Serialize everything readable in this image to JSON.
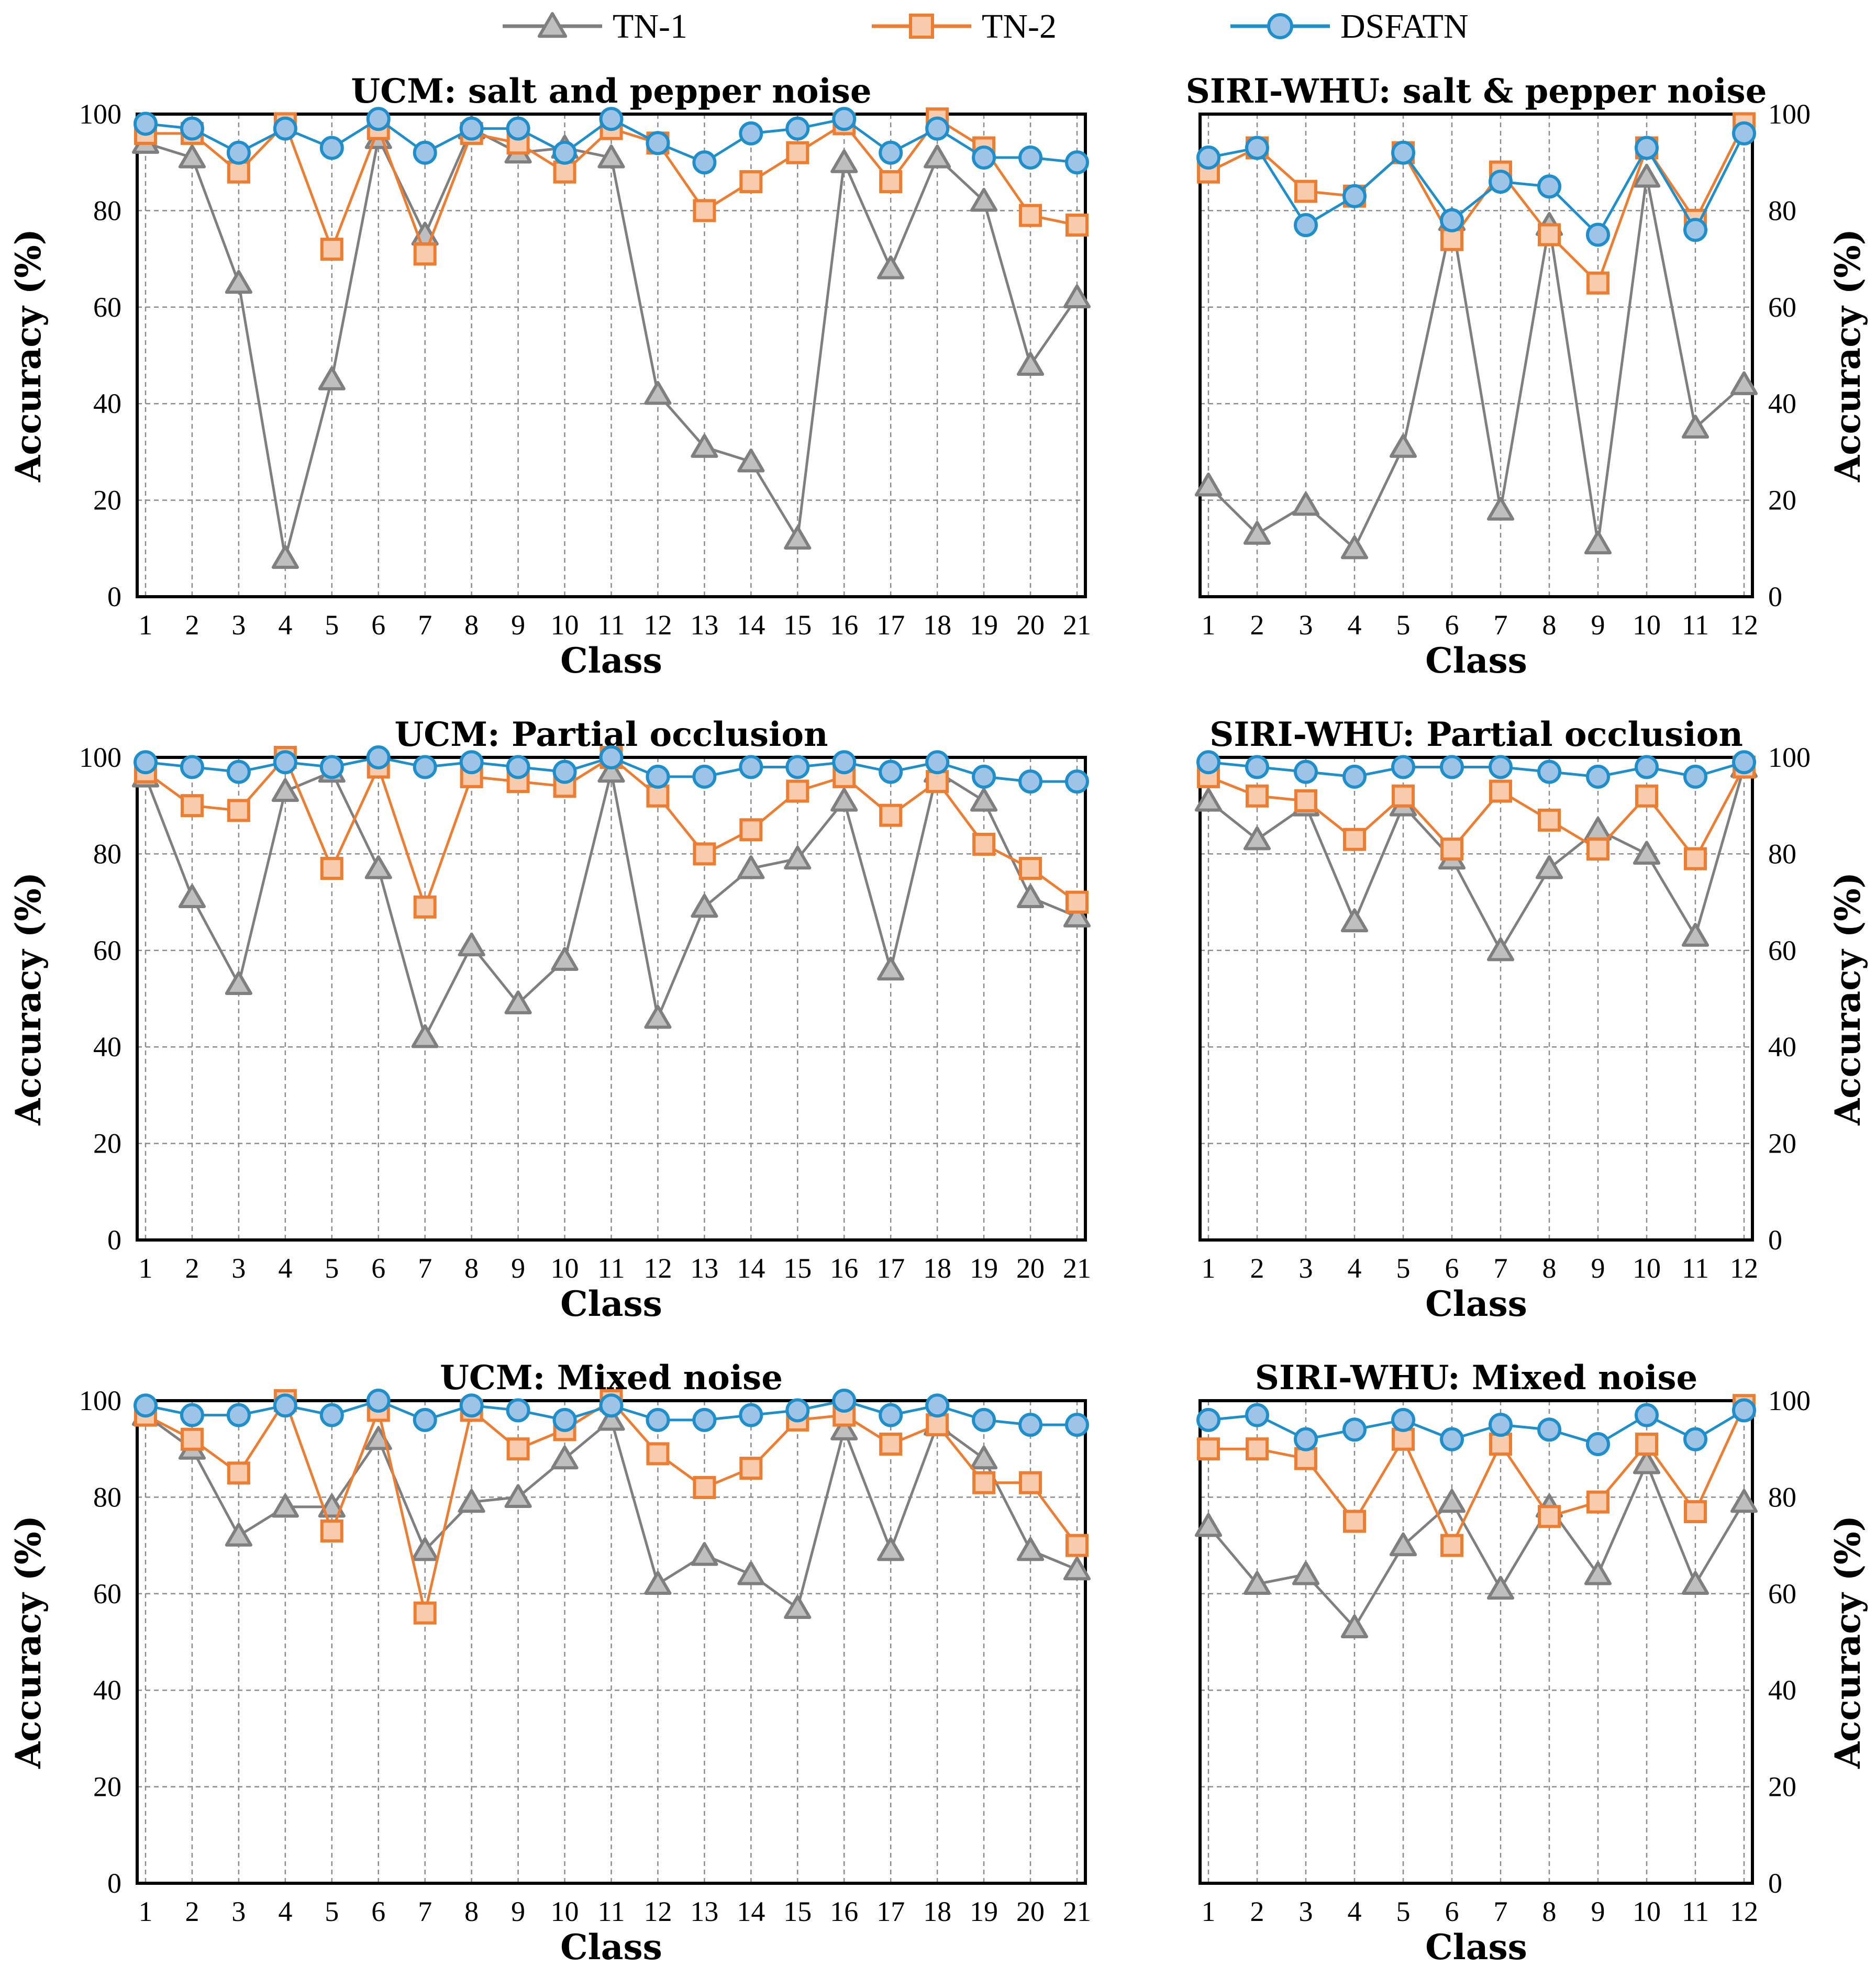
{
  "legend": [
    {
      "name": "TN-1",
      "color": "#7f7f7f",
      "fill": "#bfbfbf",
      "marker": "triangle"
    },
    {
      "name": "TN-2",
      "color": "#ed7d31",
      "fill": "#f8cbad",
      "marker": "square"
    },
    {
      "name": "DSFATN",
      "color": "#1f8fcc",
      "fill": "#9dc3e6",
      "marker": "circle"
    }
  ],
  "chart_data": [
    {
      "type": "line",
      "title": "UCM: salt and pepper noise",
      "xlabel": "Class",
      "ylabel": "Accuracy (%)",
      "ylim": [
        0,
        100
      ],
      "yaxis_side": "left",
      "categories": [
        "1",
        "2",
        "3",
        "4",
        "5",
        "6",
        "7",
        "8",
        "9",
        "10",
        "11",
        "12",
        "13",
        "14",
        "15",
        "16",
        "17",
        "18",
        "19",
        "20",
        "21"
      ],
      "series": [
        {
          "name": "TN-1",
          "values": [
            94,
            91,
            65,
            8,
            45,
            95,
            75,
            97,
            92,
            93,
            91,
            42,
            31,
            28,
            12,
            90,
            68,
            91,
            82,
            48,
            62
          ]
        },
        {
          "name": "TN-2",
          "values": [
            96,
            96,
            88,
            98,
            72,
            97,
            71,
            96,
            94,
            88,
            97,
            94,
            80,
            86,
            92,
            98,
            86,
            99,
            93,
            79,
            77
          ]
        },
        {
          "name": "DSFATN",
          "values": [
            98,
            97,
            92,
            97,
            93,
            99,
            92,
            97,
            97,
            92,
            99,
            94,
            90,
            96,
            97,
            99,
            92,
            97,
            91,
            91,
            90
          ]
        }
      ]
    },
    {
      "type": "line",
      "title": "SIRI-WHU: salt & pepper noise",
      "xlabel": "Class",
      "ylabel": "Accuracy (%)",
      "ylim": [
        0,
        100
      ],
      "yaxis_side": "right",
      "categories": [
        "1",
        "2",
        "3",
        "4",
        "5",
        "6",
        "7",
        "8",
        "9",
        "10",
        "11",
        "12"
      ],
      "series": [
        {
          "name": "TN-1",
          "values": [
            23,
            13,
            19,
            10,
            31,
            78,
            18,
            77,
            11,
            87,
            35,
            44
          ]
        },
        {
          "name": "TN-2",
          "values": [
            88,
            93,
            84,
            83,
            92,
            74,
            88,
            75,
            65,
            93,
            78,
            98
          ]
        },
        {
          "name": "DSFATN",
          "values": [
            91,
            93,
            77,
            83,
            92,
            78,
            86,
            85,
            75,
            93,
            76,
            96
          ]
        }
      ]
    },
    {
      "type": "line",
      "title": "UCM: Partial occlusion",
      "xlabel": "Class",
      "ylabel": "Accuracy (%)",
      "ylim": [
        0,
        100
      ],
      "yaxis_side": "left",
      "categories": [
        "1",
        "2",
        "3",
        "4",
        "5",
        "6",
        "7",
        "8",
        "9",
        "10",
        "11",
        "12",
        "13",
        "14",
        "15",
        "16",
        "17",
        "18",
        "19",
        "20",
        "21"
      ],
      "series": [
        {
          "name": "TN-1",
          "values": [
            96,
            71,
            53,
            93,
            97,
            77,
            42,
            61,
            49,
            58,
            97,
            46,
            69,
            77,
            79,
            91,
            56,
            97,
            91,
            71,
            67
          ]
        },
        {
          "name": "TN-2",
          "values": [
            97,
            90,
            89,
            100,
            77,
            98,
            69,
            96,
            95,
            94,
            100,
            92,
            80,
            85,
            93,
            96,
            88,
            95,
            82,
            77,
            70
          ]
        },
        {
          "name": "DSFATN",
          "values": [
            99,
            98,
            97,
            99,
            98,
            100,
            98,
            99,
            98,
            97,
            100,
            96,
            96,
            98,
            98,
            99,
            97,
            99,
            96,
            95,
            95
          ]
        }
      ]
    },
    {
      "type": "line",
      "title": "SIRI-WHU: Partial occlusion",
      "xlabel": "Class",
      "ylabel": "Accuracy (%)",
      "ylim": [
        0,
        100
      ],
      "yaxis_side": "right",
      "categories": [
        "1",
        "2",
        "3",
        "4",
        "5",
        "6",
        "7",
        "8",
        "9",
        "10",
        "11",
        "12"
      ],
      "series": [
        {
          "name": "TN-1",
          "values": [
            91,
            83,
            90,
            66,
            90,
            79,
            60,
            77,
            85,
            80,
            63,
            98
          ]
        },
        {
          "name": "TN-2",
          "values": [
            96,
            92,
            91,
            83,
            92,
            81,
            93,
            87,
            81,
            92,
            79,
            98
          ]
        },
        {
          "name": "DSFATN",
          "values": [
            99,
            98,
            97,
            96,
            98,
            98,
            98,
            97,
            96,
            98,
            96,
            99
          ]
        }
      ]
    },
    {
      "type": "line",
      "title": "UCM: Mixed noise",
      "xlabel": "Class",
      "ylabel": "Accuracy (%)",
      "ylim": [
        0,
        100
      ],
      "yaxis_side": "left",
      "categories": [
        "1",
        "2",
        "3",
        "4",
        "5",
        "6",
        "7",
        "8",
        "9",
        "10",
        "11",
        "12",
        "13",
        "14",
        "15",
        "16",
        "17",
        "18",
        "19",
        "20",
        "21"
      ],
      "series": [
        {
          "name": "TN-1",
          "values": [
            97,
            90,
            72,
            78,
            78,
            92,
            69,
            79,
            80,
            88,
            96,
            62,
            68,
            64,
            57,
            94,
            69,
            95,
            88,
            69,
            65
          ]
        },
        {
          "name": "TN-2",
          "values": [
            97,
            92,
            85,
            100,
            73,
            98,
            56,
            98,
            90,
            94,
            100,
            89,
            82,
            86,
            96,
            97,
            91,
            95,
            83,
            83,
            70
          ]
        },
        {
          "name": "DSFATN",
          "values": [
            99,
            97,
            97,
            99,
            97,
            100,
            96,
            99,
            98,
            96,
            99,
            96,
            96,
            97,
            98,
            100,
            97,
            99,
            96,
            95,
            95
          ]
        }
      ]
    },
    {
      "type": "line",
      "title": "SIRI-WHU: Mixed noise",
      "xlabel": "Class",
      "ylabel": "Accuracy (%)",
      "ylim": [
        0,
        100
      ],
      "yaxis_side": "right",
      "categories": [
        "1",
        "2",
        "3",
        "4",
        "5",
        "6",
        "7",
        "8",
        "9",
        "10",
        "11",
        "12"
      ],
      "series": [
        {
          "name": "TN-1",
          "values": [
            74,
            62,
            64,
            53,
            70,
            79,
            61,
            78,
            64,
            87,
            62,
            79
          ]
        },
        {
          "name": "TN-2",
          "values": [
            90,
            90,
            88,
            75,
            92,
            70,
            91,
            76,
            79,
            91,
            77,
            99
          ]
        },
        {
          "name": "DSFATN",
          "values": [
            96,
            97,
            92,
            94,
            96,
            92,
            95,
            94,
            91,
            97,
            92,
            98
          ]
        }
      ]
    }
  ]
}
